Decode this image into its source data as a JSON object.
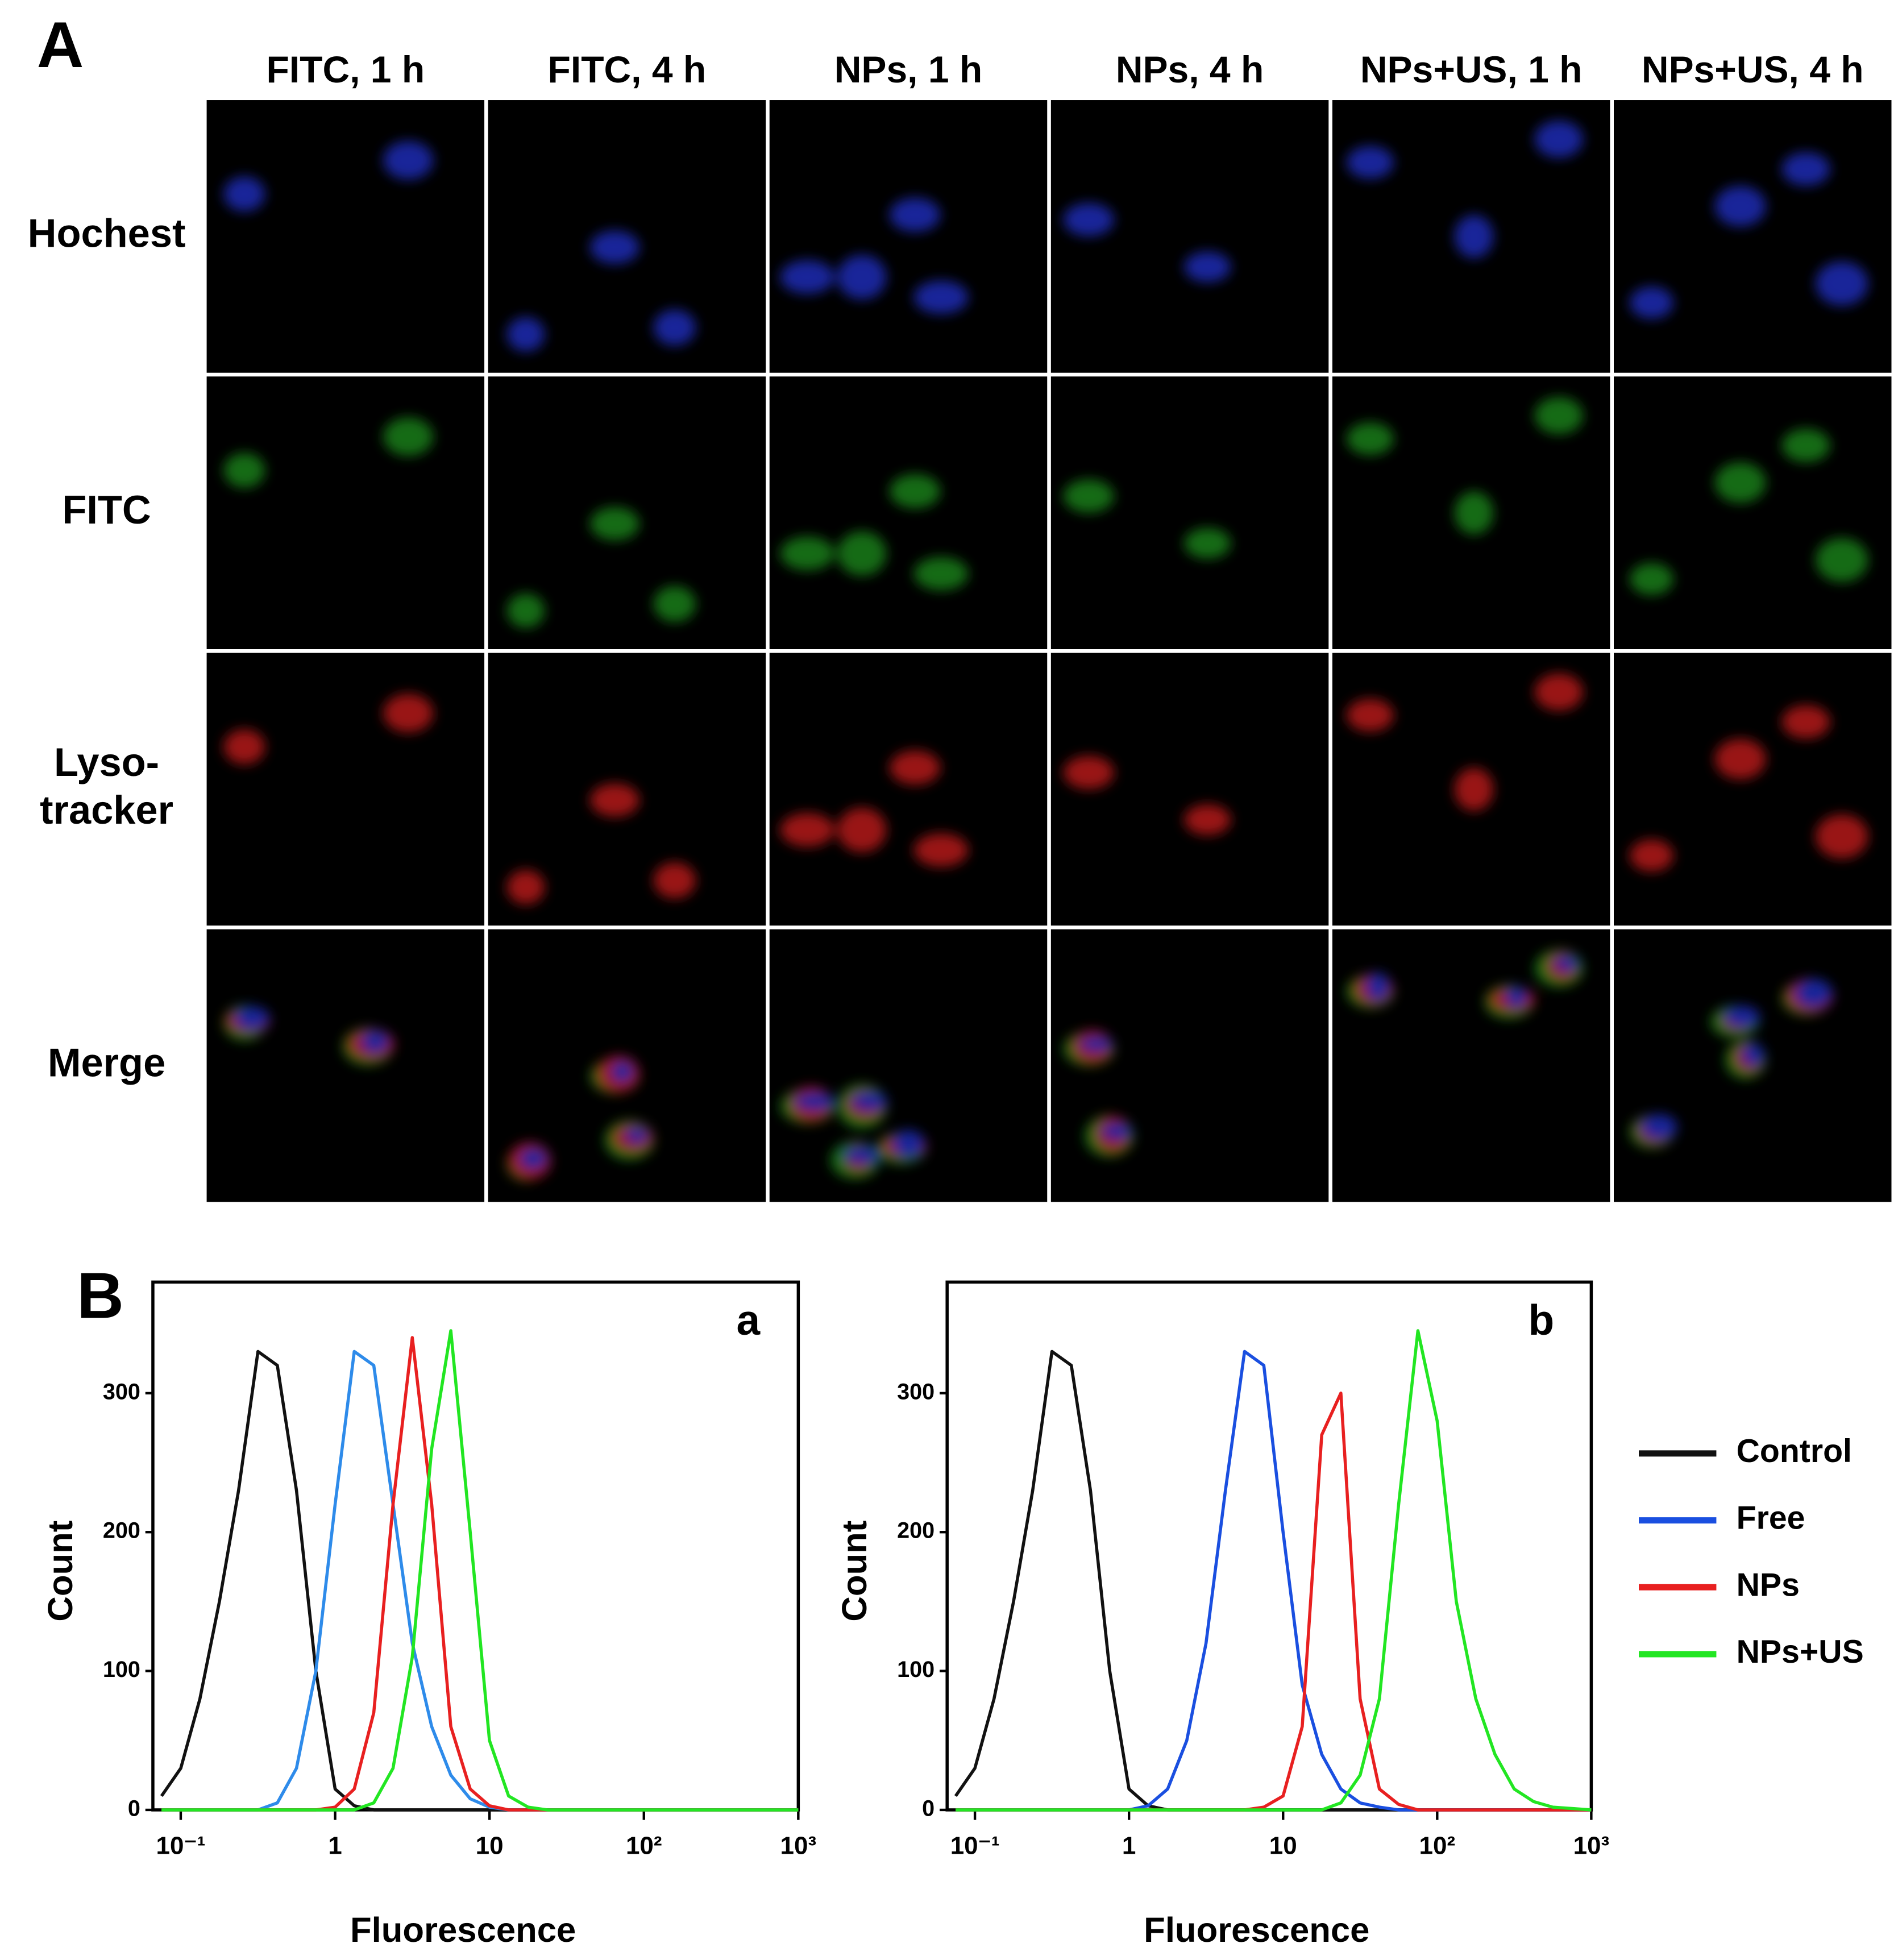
{
  "panel_a": {
    "label": "A",
    "columns": [
      "FITC, 1 h",
      "FITC, 4 h",
      "NPs, 1 h",
      "NPs, 4 h",
      "NPs+US, 1 h",
      "NPs+US, 4 h"
    ],
    "rows": [
      [
        "Hochest"
      ],
      [
        "FITC"
      ],
      [
        "Lyso-",
        "tracker"
      ],
      [
        "Merge"
      ]
    ]
  },
  "panel_b": {
    "label": "B"
  },
  "chart_data": [
    {
      "type": "line",
      "label": "a",
      "x_label": "Fluorescence",
      "y_label": "Count",
      "log_x": true,
      "xlim": [
        0.066,
        1000
      ],
      "ylim": [
        0,
        380
      ],
      "xticks": [
        {
          "value": 0.1,
          "label": "10⁻¹"
        },
        1,
        10,
        {
          "value": 100,
          "label": "10²"
        },
        {
          "value": 1000,
          "label": "10³"
        }
      ],
      "yticks": [
        0,
        100,
        200,
        300
      ],
      "x": [
        0.075,
        0.1,
        0.133,
        0.178,
        0.237,
        0.316,
        0.422,
        0.562,
        0.75,
        1,
        1.33,
        1.78,
        2.37,
        3.16,
        4.22,
        5.62,
        7.5,
        10,
        13.3,
        17.8,
        23.7,
        31.6,
        42.2,
        56.2,
        75,
        100,
        133,
        178,
        237,
        316,
        422,
        562,
        750,
        1000
      ],
      "series": [
        {
          "color": "#111111",
          "values": [
            10,
            30,
            80,
            150,
            230,
            330,
            320,
            230,
            100,
            15,
            3,
            0,
            0,
            0,
            0,
            0,
            0,
            0,
            0,
            0,
            0,
            0,
            0,
            0,
            0,
            0,
            0,
            0,
            0,
            0,
            0,
            0,
            0,
            0
          ]
        },
        {
          "color": "#2e8bea",
          "values": [
            0,
            0,
            0,
            0,
            0,
            0,
            5,
            30,
            100,
            220,
            330,
            320,
            220,
            120,
            60,
            25,
            8,
            2,
            0,
            0,
            0,
            0,
            0,
            0,
            0,
            0,
            0,
            0,
            0,
            0,
            0,
            0,
            0,
            0
          ]
        },
        {
          "color": "#e82020",
          "values": [
            0,
            0,
            0,
            0,
            0,
            0,
            0,
            0,
            0,
            2,
            15,
            70,
            220,
            340,
            220,
            60,
            15,
            3,
            0,
            0,
            0,
            0,
            0,
            0,
            0,
            0,
            0,
            0,
            0,
            0,
            0,
            0,
            0,
            0
          ]
        },
        {
          "color": "#22e622",
          "values": [
            0,
            0,
            0,
            0,
            0,
            0,
            0,
            0,
            0,
            0,
            0,
            5,
            30,
            110,
            260,
            345,
            200,
            50,
            10,
            2,
            0,
            0,
            0,
            0,
            0,
            0,
            0,
            0,
            0,
            0,
            0,
            0,
            0,
            0
          ]
        }
      ]
    },
    {
      "type": "line",
      "label": "b",
      "x_label": "Fluorescence",
      "y_label": "Count",
      "log_x": true,
      "xlim": [
        0.066,
        1000
      ],
      "ylim": [
        0,
        380
      ],
      "xticks": [
        {
          "value": 0.1,
          "label": "10⁻¹"
        },
        1,
        10,
        {
          "value": 100,
          "label": "10²"
        },
        {
          "value": 1000,
          "label": "10³"
        }
      ],
      "yticks": [
        0,
        100,
        200,
        300
      ],
      "x": [
        0.075,
        0.1,
        0.133,
        0.178,
        0.237,
        0.316,
        0.422,
        0.562,
        0.75,
        1,
        1.33,
        1.78,
        2.37,
        3.16,
        4.22,
        5.62,
        7.5,
        10,
        13.3,
        17.8,
        23.7,
        31.6,
        42.2,
        56.2,
        75,
        100,
        133,
        178,
        237,
        316,
        422,
        562,
        750,
        1000
      ],
      "legend": "right",
      "series": [
        {
          "name": "Control",
          "color": "#111111",
          "values": [
            10,
            30,
            80,
            150,
            230,
            330,
            320,
            230,
            100,
            15,
            3,
            0,
            0,
            0,
            0,
            0,
            0,
            0,
            0,
            0,
            0,
            0,
            0,
            0,
            0,
            0,
            0,
            0,
            0,
            0,
            0,
            0,
            0,
            0
          ]
        },
        {
          "name": "Free",
          "color": "#1a4fe0",
          "values": [
            0,
            0,
            0,
            0,
            0,
            0,
            0,
            0,
            0,
            0,
            3,
            15,
            50,
            120,
            230,
            330,
            320,
            200,
            90,
            40,
            15,
            5,
            2,
            0,
            0,
            0,
            0,
            0,
            0,
            0,
            0,
            0,
            0,
            0
          ]
        },
        {
          "name": "NPs",
          "color": "#e82020",
          "values": [
            0,
            0,
            0,
            0,
            0,
            0,
            0,
            0,
            0,
            0,
            0,
            0,
            0,
            0,
            0,
            0,
            2,
            10,
            60,
            270,
            300,
            80,
            15,
            4,
            0,
            0,
            0,
            0,
            0,
            0,
            0,
            0,
            0,
            0
          ]
        },
        {
          "name": "NPs+US",
          "color": "#22e622",
          "values": [
            0,
            0,
            0,
            0,
            0,
            0,
            0,
            0,
            0,
            0,
            0,
            0,
            0,
            0,
            0,
            0,
            0,
            0,
            0,
            0,
            5,
            25,
            80,
            220,
            345,
            280,
            150,
            80,
            40,
            15,
            6,
            2,
            1,
            0
          ]
        }
      ]
    }
  ]
}
